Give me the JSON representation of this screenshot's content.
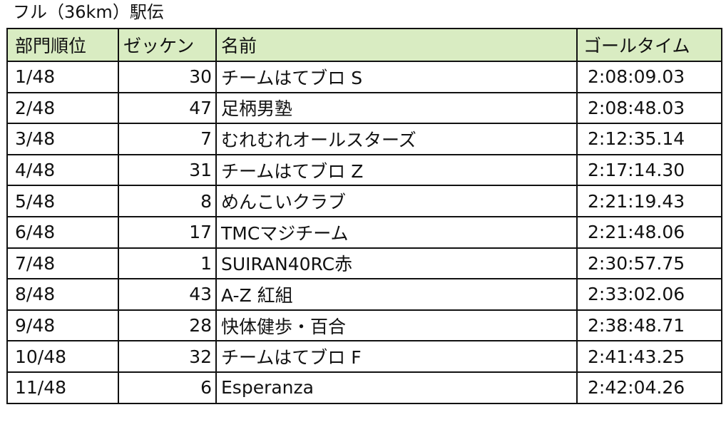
{
  "title": "フル（36km）駅伝",
  "columns": {
    "rank": "部門順位",
    "bib": "ゼッケン",
    "name": "名前",
    "time": "ゴールタイム"
  },
  "rows": [
    {
      "rank": "1/48",
      "bib": "30",
      "name": "チームはてブロ S",
      "time": "2:08:09.03",
      "bold": true
    },
    {
      "rank": "2/48",
      "bib": "47",
      "name": "足柄男塾",
      "time": "2:08:48.03",
      "bold": false
    },
    {
      "rank": "3/48",
      "bib": "7",
      "name": "むれむれオールスターズ",
      "time": "2:12:35.14",
      "bold": false
    },
    {
      "rank": "4/48",
      "bib": "31",
      "name": "チームはてブロ Z",
      "time": "2:17:14.30",
      "bold": true
    },
    {
      "rank": "5/48",
      "bib": "8",
      "name": "めんこいクラブ",
      "time": "2:21:19.43",
      "bold": false
    },
    {
      "rank": "6/48",
      "bib": "17",
      "name": "TMCマジチーム",
      "time": "2:21:48.06",
      "bold": false
    },
    {
      "rank": "7/48",
      "bib": "1",
      "name": "SUIRAN40RC赤",
      "time": "2:30:57.75",
      "bold": false
    },
    {
      "rank": "8/48",
      "bib": "43",
      "name": "A-Z 紅組",
      "time": "2:33:02.06",
      "bold": false
    },
    {
      "rank": "9/48",
      "bib": "28",
      "name": "快体健歩・百合",
      "time": "2:38:48.71",
      "bold": false
    },
    {
      "rank": "10/48",
      "bib": "32",
      "name": "チームはてブロ F",
      "time": "2:41:43.25",
      "bold": true
    },
    {
      "rank": "11/48",
      "bib": "6",
      "name": "Esperanza",
      "time": "2:42:04.26",
      "bold": false
    }
  ],
  "colors": {
    "header_bg": "#d9ecc2",
    "border": "#111111"
  }
}
